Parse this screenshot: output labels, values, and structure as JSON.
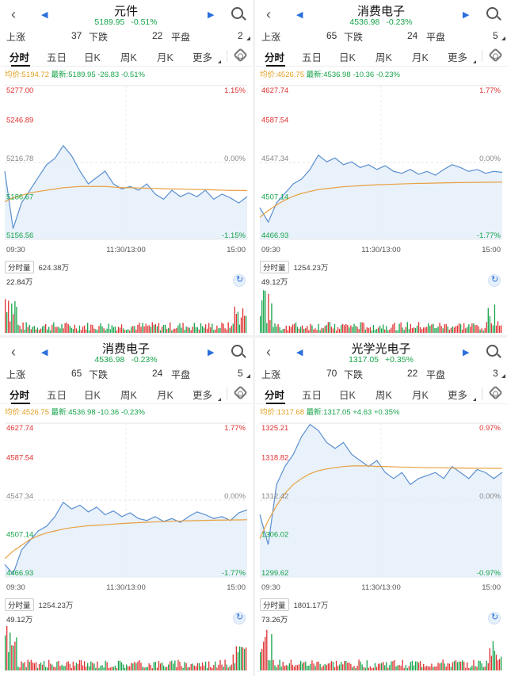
{
  "colors": {
    "up": "#e03030",
    "down": "#16a34a",
    "price_line": "#5a8fd0",
    "avg_line": "#e8a040",
    "area": "#e4eef9",
    "tab_active": "#111111"
  },
  "icons": {
    "back": "chevron-left-icon",
    "prev": "triangle-left-icon",
    "next": "triangle-right-icon",
    "search": "search-icon",
    "settings": "gear-icon",
    "refresh": "refresh-icon"
  },
  "panels": [
    {
      "title": "元件",
      "price": "5189.95",
      "change_pct": "-0.51%",
      "stats": {
        "up_label": "上涨",
        "up": "37",
        "down_label": "下跌",
        "down": "22",
        "flat_label": "平盘",
        "flat": "2"
      },
      "tabs": [
        "分时",
        "五日",
        "日K",
        "周K",
        "月K",
        "更多"
      ],
      "avg_label": "均价:5194.72",
      "last_label": "最新:5189.95",
      "delta": "-26.83",
      "delta_pct": "-0.51%",
      "y_labels": [
        "5277.00",
        "5246.89",
        "5216.78",
        "5186.67",
        "5156.56"
      ],
      "pct_labels": [
        "1.15%",
        "0.00%",
        "-1.15%"
      ],
      "x_labels": [
        "09:30",
        "11:30/13:00",
        "15:00"
      ],
      "vol_label": "分时量",
      "vol_total": "624.38万",
      "vol_max": "22.84万",
      "chart_data": {
        "type": "line",
        "ylim": [
          5156.56,
          5277.0
        ],
        "base": 5216.78,
        "price": [
          5210,
          5165,
          5185,
          5195,
          5205,
          5215,
          5220,
          5230,
          5222,
          5210,
          5200,
          5205,
          5210,
          5200,
          5196,
          5198,
          5195,
          5200,
          5192,
          5188,
          5195,
          5190,
          5193,
          5190,
          5195,
          5188,
          5192,
          5189,
          5185,
          5190
        ],
        "avg": [
          5186,
          5189,
          5191,
          5193,
          5194,
          5195,
          5196,
          5197,
          5197.5,
          5198,
          5198,
          5198,
          5198,
          5197.5,
          5197,
          5197,
          5196.8,
          5196.6,
          5196.4,
          5196.2,
          5196,
          5196,
          5195.8,
          5195.6,
          5195.5,
          5195.3,
          5195.1,
          5194.9,
          5194.8,
          5194.72
        ]
      }
    },
    {
      "title": "消费电子",
      "price": "4536.98",
      "change_pct": "-0.23%",
      "stats": {
        "up_label": "上涨",
        "up": "65",
        "down_label": "下跌",
        "down": "24",
        "flat_label": "平盘",
        "flat": "5"
      },
      "tabs": [
        "分时",
        "五日",
        "日K",
        "周K",
        "月K",
        "更多"
      ],
      "avg_label": "均价:4526.75",
      "last_label": "最新:4536.98",
      "delta": "-10.36",
      "delta_pct": "-0.23%",
      "y_labels": [
        "4627.74",
        "4587.54",
        "4547.34",
        "4507.14",
        "4466.93"
      ],
      "pct_labels": [
        "1.77%",
        "0.00%",
        "-1.77%"
      ],
      "x_labels": [
        "09:30",
        "11:30/13:00",
        "15:00"
      ],
      "vol_label": "分时量",
      "vol_total": "1254.23万",
      "vol_max": "49.12万",
      "chart_data": {
        "type": "line",
        "ylim": [
          4466.93,
          4627.74
        ],
        "base": 4547.34,
        "price": [
          4500,
          4485,
          4505,
          4515,
          4525,
          4530,
          4540,
          4555,
          4548,
          4552,
          4545,
          4548,
          4542,
          4545,
          4540,
          4544,
          4538,
          4536,
          4540,
          4535,
          4538,
          4534,
          4540,
          4545,
          4542,
          4538,
          4540,
          4536,
          4538,
          4537
        ],
        "avg": [
          4490,
          4497,
          4503,
          4508,
          4512,
          4515,
          4517,
          4519,
          4520,
          4521,
          4522,
          4522.5,
          4523,
          4523.5,
          4524,
          4524.3,
          4524.6,
          4524.9,
          4525.2,
          4525.4,
          4525.6,
          4525.8,
          4526,
          4526.2,
          4526.3,
          4526.4,
          4526.5,
          4526.6,
          4526.7,
          4526.75
        ]
      }
    },
    {
      "title": "消费电子",
      "price": "4536.98",
      "change_pct": "-0.23%",
      "stats": {
        "up_label": "上涨",
        "up": "65",
        "down_label": "下跌",
        "down": "24",
        "flat_label": "平盘",
        "flat": "5"
      },
      "tabs": [
        "分时",
        "五日",
        "日K",
        "周K",
        "月K",
        "更多"
      ],
      "avg_label": "均价:4526.75",
      "last_label": "最新:4536.98",
      "delta": "-10.36",
      "delta_pct": "-0.23%",
      "y_labels": [
        "4627.74",
        "4587.54",
        "4547.34",
        "4507.14",
        "4466.93"
      ],
      "pct_labels": [
        "1.77%",
        "0.00%",
        "-1.77%"
      ],
      "x_labels": [
        "09:30",
        "11:30/13:00",
        "15:00"
      ],
      "vol_label": "分时量",
      "vol_total": "1254.23万",
      "vol_max": "49.12万",
      "chart_data": {
        "type": "line",
        "ylim": [
          4466.93,
          4627.74
        ],
        "base": 4547.34,
        "price": [
          4480,
          4470,
          4495,
          4505,
          4515,
          4520,
          4530,
          4545,
          4538,
          4542,
          4535,
          4540,
          4532,
          4536,
          4530,
          4534,
          4528,
          4526,
          4530,
          4525,
          4528,
          4524,
          4530,
          4535,
          4532,
          4528,
          4530,
          4526,
          4534,
          4537
        ],
        "avg": [
          4486,
          4494,
          4500,
          4506,
          4510,
          4513,
          4515,
          4517,
          4518.5,
          4519.5,
          4520.5,
          4521,
          4521.6,
          4522.2,
          4522.8,
          4523.3,
          4523.7,
          4524.1,
          4524.5,
          4524.8,
          4525.1,
          4525.4,
          4525.7,
          4525.9,
          4526.1,
          4526.3,
          4526.4,
          4526.5,
          4526.6,
          4526.75
        ]
      }
    },
    {
      "title": "光学光电子",
      "price": "1317.05",
      "change_pct": "+0.35%",
      "stats": {
        "up_label": "上涨",
        "up": "70",
        "down_label": "下跌",
        "down": "22",
        "flat_label": "平盘",
        "flat": "3"
      },
      "tabs": [
        "分时",
        "五日",
        "日K",
        "周K",
        "月K",
        "更多"
      ],
      "avg_label": "均价:1317.68",
      "last_label": "最新:1317.05",
      "delta": "+4.63",
      "delta_pct": "+0.35%",
      "y_labels": [
        "1325.21",
        "1318.82",
        "1312.42",
        "1306.02",
        "1299.62"
      ],
      "pct_labels": [
        "0.97%",
        "0.00%",
        "-0.97%"
      ],
      "x_labels": [
        "09:30",
        "11:30/13:00",
        "15:00"
      ],
      "vol_label": "分时量",
      "vol_total": "1801.17万",
      "vol_max": "73.26万",
      "chart_data": {
        "type": "line",
        "ylim": [
          1299.62,
          1325.21
        ],
        "base": 1312.42,
        "price": [
          1310,
          1305,
          1315,
          1318,
          1320,
          1323,
          1325,
          1324,
          1322,
          1321,
          1322,
          1320,
          1319,
          1318,
          1319,
          1317,
          1316,
          1317,
          1315,
          1316,
          1316.5,
          1317,
          1316,
          1318,
          1317,
          1316,
          1317.5,
          1317,
          1316,
          1317.05
        ],
        "avg": [
          1306,
          1309,
          1311.5,
          1313.5,
          1315,
          1316,
          1316.8,
          1317.3,
          1317.6,
          1317.8,
          1318,
          1318.1,
          1318.1,
          1318.1,
          1318,
          1318,
          1317.95,
          1317.9,
          1317.9,
          1317.85,
          1317.8,
          1317.8,
          1317.78,
          1317.76,
          1317.74,
          1317.72,
          1317.71,
          1317.7,
          1317.69,
          1317.68
        ]
      }
    }
  ]
}
